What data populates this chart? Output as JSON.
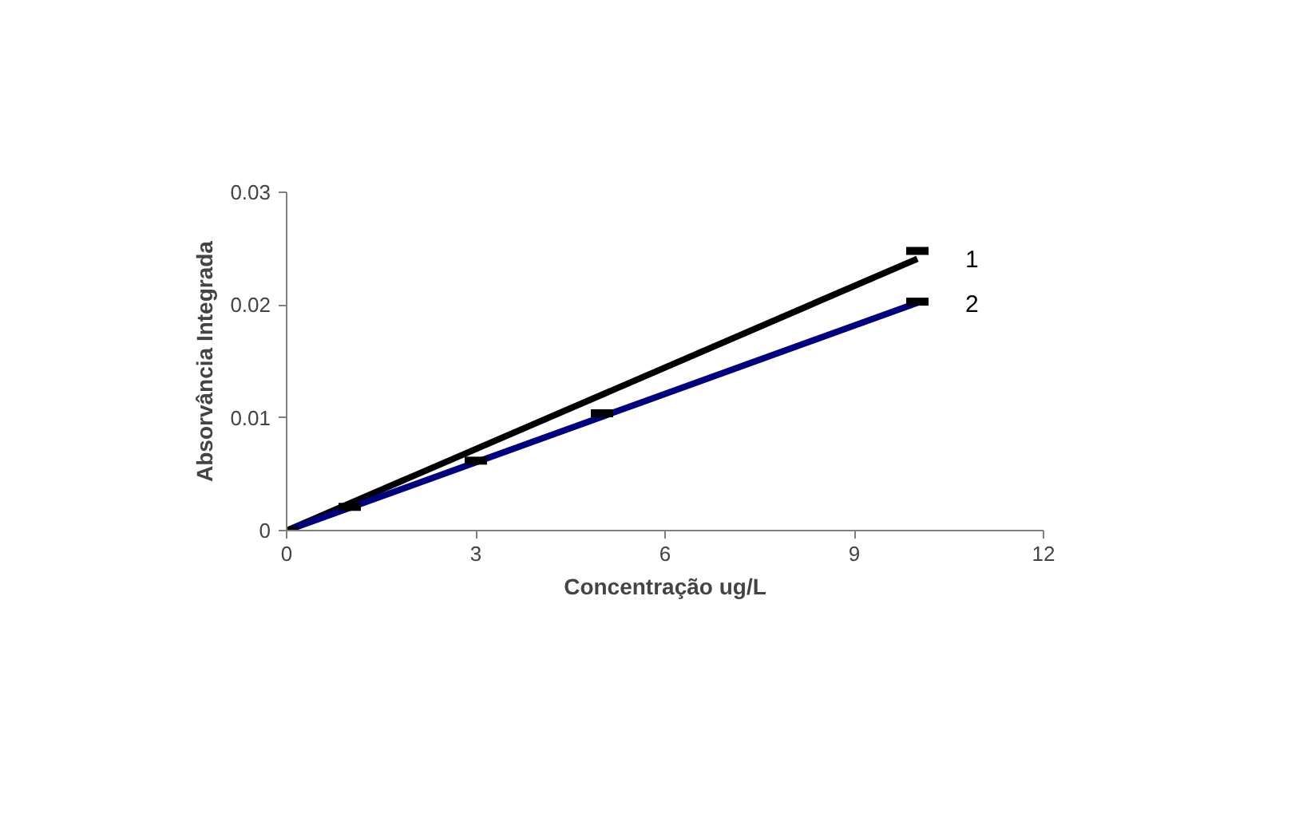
{
  "chart_data": {
    "type": "line",
    "xlabel": "Concentração ug/L",
    "ylabel": "Absorvância Integrada",
    "xlim": [
      0,
      12
    ],
    "ylim": [
      0,
      0.03
    ],
    "xticks": [
      0,
      3,
      6,
      9,
      12
    ],
    "yticks": [
      0,
      0.01,
      0.02,
      0.03
    ],
    "grid": false,
    "series": [
      {
        "type": "scatter",
        "color": "#000000",
        "x": [
          0,
          1,
          3,
          5,
          10,
          10
        ],
        "values": [
          0,
          0.0021,
          0.0062,
          0.0104,
          0.0248,
          0.0203
        ]
      },
      {
        "name": "1",
        "color": "#000000",
        "x": [
          0,
          10
        ],
        "values": [
          0,
          0.0241
        ]
      },
      {
        "name": "2",
        "color": "#000080",
        "x": [
          0,
          10
        ],
        "values": [
          0,
          0.0202
        ]
      }
    ]
  }
}
